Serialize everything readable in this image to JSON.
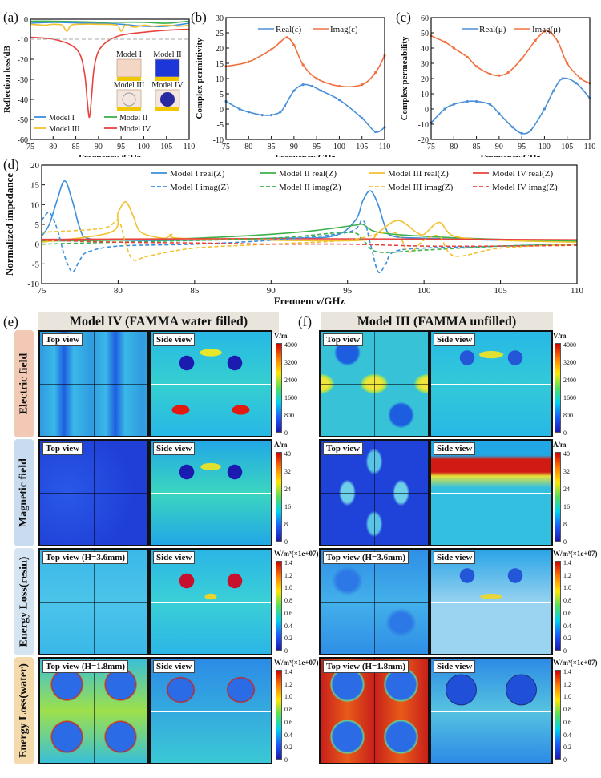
{
  "colors": {
    "model1": "#3a8fdc",
    "model2": "#3cb04a",
    "model3": "#f2c12e",
    "model4": "#e8433e",
    "real": "#4a90d9",
    "imag": "#f07040"
  },
  "panel_labels": {
    "a": "(a)",
    "b": "(b)",
    "c": "(c)",
    "d": "(d)",
    "e": "(e)",
    "f": "(f)"
  },
  "chart_data": [
    {
      "id": "a",
      "type": "line",
      "xlabel": "Frequency /GHz",
      "ylabel": "Reflection loss/dB",
      "xlim": [
        75,
        110
      ],
      "ylim": [
        -60,
        0
      ],
      "xticks": [
        "75",
        "80",
        "85",
        "90",
        "95",
        "100",
        "105",
        "110"
      ],
      "yticks": [
        "0",
        "-10",
        "-20",
        "-30",
        "-40",
        "-50",
        "-60"
      ],
      "legend": [
        "Model I",
        "Model II",
        "Model III",
        "Model IV"
      ],
      "inset_labels": [
        "Model I",
        "Model II",
        "Model III",
        "Model IV"
      ],
      "reference_line_dB": -10,
      "series": [
        {
          "name": "Model I",
          "x": [
            75,
            80,
            85,
            90,
            95,
            100,
            105,
            110
          ],
          "values": [
            -2,
            -1.6,
            -1.8,
            -2,
            -2.5,
            -3.5,
            -3.5,
            -2
          ]
        },
        {
          "name": "Model II",
          "x": [
            75,
            80,
            85,
            90,
            95,
            100,
            105,
            110
          ],
          "values": [
            -1,
            -1,
            -1.2,
            -1.5,
            -1.5,
            -1.5,
            -2,
            -1
          ]
        },
        {
          "name": "Model III",
          "x": [
            75,
            78,
            80,
            82,
            83,
            84,
            86,
            90,
            94,
            95,
            96,
            98,
            100,
            102,
            105,
            108,
            110
          ],
          "values": [
            -2.5,
            -3,
            -2.5,
            -3,
            -6,
            -3,
            -2.5,
            -2.5,
            -3,
            -6,
            -3,
            -4,
            -3,
            -3.5,
            -3,
            -3.5,
            -3
          ]
        },
        {
          "name": "Model IV",
          "x": [
            75,
            80,
            84,
            86,
            87,
            87.5,
            88,
            88.5,
            89,
            90,
            92,
            95,
            100,
            105,
            110
          ],
          "values": [
            -9,
            -10,
            -13,
            -18,
            -28,
            -40,
            -49,
            -38,
            -25,
            -16,
            -11,
            -8,
            -6.5,
            -5.5,
            -5
          ]
        }
      ]
    },
    {
      "id": "b",
      "type": "line",
      "xlabel": "Frequency/GHz",
      "ylabel": "Complex permittivity",
      "xlim": [
        75,
        110
      ],
      "ylim": [
        -10,
        30
      ],
      "xticks": [
        "75",
        "80",
        "85",
        "90",
        "95",
        "100",
        "105",
        "110"
      ],
      "yticks": [
        "30",
        "25",
        "20",
        "15",
        "10",
        "5",
        "0",
        "-5",
        "-10"
      ],
      "legend": [
        "Real(ε)",
        "Imag(ε)"
      ],
      "series": [
        {
          "name": "Real(ε)",
          "x": [
            75,
            78,
            80,
            83,
            85,
            87,
            88,
            90,
            92,
            94,
            96,
            100,
            105,
            108,
            110
          ],
          "values": [
            2.5,
            0,
            -1,
            -2,
            -2,
            -1,
            1,
            6,
            8,
            7.5,
            6,
            3,
            -3,
            -7.5,
            -6
          ]
        },
        {
          "name": "Imag(ε)",
          "x": [
            75,
            80,
            85,
            87,
            88.5,
            90,
            92,
            95,
            100,
            105,
            108,
            110
          ],
          "values": [
            14,
            15.5,
            19.5,
            22,
            23.5,
            21,
            14.5,
            10,
            7.5,
            8,
            12,
            17.5
          ]
        }
      ]
    },
    {
      "id": "c",
      "type": "line",
      "xlabel": "Frequency/GHz",
      "ylabel": "Complex permeability",
      "xlim": [
        75,
        110
      ],
      "ylim": [
        -20,
        60
      ],
      "xticks": [
        "75",
        "80",
        "85",
        "90",
        "95",
        "100",
        "105",
        "110"
      ],
      "yticks": [
        "60",
        "50",
        "40",
        "30",
        "20",
        "10",
        "0",
        "-10",
        "-20"
      ],
      "legend": [
        "Real(μ)",
        "Imag(μ)"
      ],
      "series": [
        {
          "name": "Real(μ)",
          "x": [
            75,
            78,
            80,
            83,
            85,
            88,
            90,
            93,
            95,
            97,
            100,
            102,
            104,
            107,
            110
          ],
          "values": [
            -9,
            0,
            3,
            5,
            5,
            3,
            -3,
            -12,
            -16,
            -14,
            0,
            12,
            20,
            17,
            7
          ]
        },
        {
          "name": "Imag(μ)",
          "x": [
            75,
            78,
            80,
            83,
            85,
            88,
            90,
            92,
            95,
            98,
            100,
            101,
            103,
            105,
            108,
            110
          ],
          "values": [
            48,
            44,
            40,
            34,
            28,
            23,
            22,
            24,
            33,
            45,
            51,
            51,
            44,
            30,
            20,
            17
          ]
        }
      ]
    },
    {
      "id": "d",
      "type": "line",
      "xlabel": "Frequency/GHz",
      "ylabel": "Normalized impedance",
      "xlim": [
        75,
        110
      ],
      "ylim": [
        -10,
        20
      ],
      "xticks": [
        "75",
        "80",
        "85",
        "90",
        "95",
        "100",
        "105",
        "110"
      ],
      "yticks": [
        "20",
        "15",
        "10",
        "5",
        "0",
        "-5",
        "-10"
      ],
      "legend": [
        "Model I real(Z)",
        "Model II real(Z)",
        "Model III real(Z)",
        "Model IV real(Z)",
        "Model I imag(Z)",
        "Model II imag(Z)",
        "Model III imag(Z)",
        "Model IV imag(Z)"
      ],
      "series": [
        {
          "name": "Model I real(Z)",
          "x": [
            75,
            75.5,
            76,
            76.5,
            77,
            77.5,
            78,
            80,
            85,
            90,
            94,
            95.5,
            96,
            96.5,
            97,
            97.5,
            98,
            100,
            105,
            110
          ],
          "values": [
            2,
            5,
            11,
            16,
            11,
            4,
            1.5,
            1,
            1,
            1.5,
            2,
            6,
            11,
            13.5,
            10,
            4,
            2,
            1.5,
            1,
            0.8
          ]
        },
        {
          "name": "Model II real(Z)",
          "x": [
            75,
            80,
            85,
            90,
            93,
            95.5,
            96,
            97,
            100,
            105,
            110
          ],
          "values": [
            0.8,
            1,
            1.5,
            2.5,
            3.5,
            4.8,
            5,
            3,
            2,
            1.2,
            0.8
          ]
        },
        {
          "name": "Model III real(Z)",
          "x": [
            75,
            79.5,
            80,
            80.5,
            81,
            81.5,
            83,
            83.5,
            84,
            90,
            96,
            97,
            98.3,
            99.5,
            100,
            101,
            102,
            105,
            110
          ],
          "values": [
            0.5,
            3,
            8,
            10.7,
            7,
            3,
            1.5,
            2.5,
            1.5,
            1,
            1,
            3,
            6,
            3,
            2.5,
            5.5,
            2,
            1,
            0.5
          ]
        },
        {
          "name": "Model IV real(Z)",
          "x": [
            75,
            80,
            90,
            100,
            110
          ],
          "values": [
            1.2,
            1.3,
            1.4,
            1.3,
            1.1
          ]
        },
        {
          "name": "Model I imag(Z)",
          "x": [
            75,
            75.5,
            76,
            76.5,
            77,
            77.5,
            78,
            80,
            85,
            90,
            95,
            96,
            96.5,
            97,
            97.5,
            98,
            100,
            105,
            110
          ],
          "values": [
            6,
            8,
            4,
            -3,
            -7,
            -4,
            -2,
            -0.5,
            0,
            1,
            3,
            6,
            0,
            -7,
            -5,
            -2,
            -1,
            -0.5,
            0
          ]
        },
        {
          "name": "Model II imag(Z)",
          "x": [
            75,
            80,
            90,
            95,
            96,
            97,
            100,
            105,
            110
          ],
          "values": [
            0,
            0.5,
            1.5,
            3,
            1,
            -2,
            -1.5,
            -0.5,
            0
          ]
        },
        {
          "name": "Model III imag(Z)",
          "x": [
            75,
            79,
            80,
            80.5,
            81,
            82,
            85,
            90,
            95,
            98,
            99,
            100,
            101,
            102,
            105,
            110
          ],
          "values": [
            3,
            4,
            6,
            0,
            -4,
            -3,
            -1,
            0,
            1,
            3,
            -2,
            1,
            2,
            -3,
            -1,
            0
          ]
        },
        {
          "name": "Model IV imag(Z)",
          "x": [
            75,
            80,
            85,
            90,
            95,
            100,
            105,
            110
          ],
          "values": [
            1,
            0.5,
            0.3,
            0,
            0,
            -0.5,
            -0.5,
            -0.3
          ]
        }
      ]
    }
  ],
  "fields": {
    "e_header": "Model IV (FAMMA water filled)",
    "f_header": "Model III (FAMMA unfilled)",
    "rows": [
      {
        "label": "Electric field",
        "top_view": "Top view",
        "side_view": "Side view",
        "unit": "V/m",
        "ticks": [
          "4000",
          "3200",
          "2400",
          "1600",
          "800",
          "0"
        ]
      },
      {
        "label": "Magnetic field",
        "top_view": "Top view",
        "side_view": "Side view",
        "unit": "A/m",
        "ticks": [
          "40",
          "32",
          "24",
          "16",
          "8",
          "0"
        ]
      },
      {
        "label": "Energy Loss(resin)",
        "top_view": "Top view (H=3.6mm)",
        "side_view": "Side view",
        "unit": "W/m³(×1e+07)",
        "ticks": [
          "1.4",
          "1.2",
          "1.0",
          "0.8",
          "0.6",
          "0.4",
          "0.2",
          "0"
        ]
      },
      {
        "label": "Energy Loss(water)",
        "top_view": "Top view (H=1.8mm)",
        "side_view": "Side view",
        "unit": "W/m³(×1e+07)",
        "ticks": [
          "1.4",
          "1.2",
          "1.0",
          "0.8",
          "0.6",
          "0.4",
          "0.2",
          "0"
        ]
      }
    ]
  }
}
